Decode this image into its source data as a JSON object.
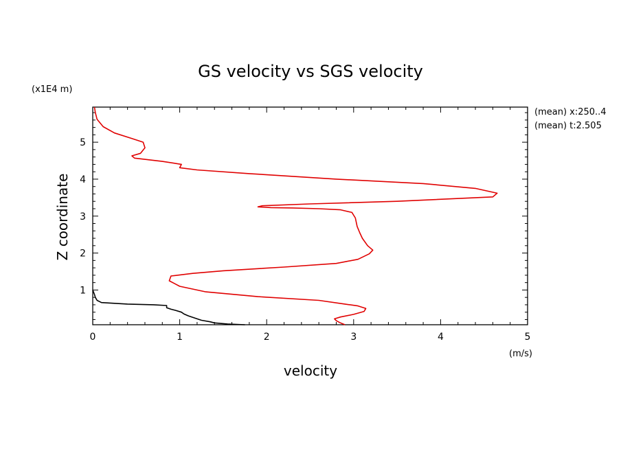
{
  "chart_data": {
    "type": "line",
    "title": "GS velocity vs SGS velocity",
    "xlabel": "velocity",
    "x_unit": "(m/s)",
    "ylabel": "Z coordinate",
    "y_unit": "(x1E4 m)",
    "xlim": [
      0,
      5
    ],
    "ylim": [
      0.06,
      5.95
    ],
    "x_ticks": [
      0,
      1,
      2,
      3,
      4,
      5
    ],
    "y_ticks": [
      1,
      2,
      3,
      4,
      5
    ],
    "annotations": [
      "(mean) x:250..4",
      "(mean) t:2.505"
    ],
    "series": [
      {
        "color": "#e00000",
        "points": [
          [
            2.9,
            0.06
          ],
          [
            2.84,
            0.12
          ],
          [
            2.8,
            0.17
          ],
          [
            2.78,
            0.22
          ],
          [
            2.85,
            0.27
          ],
          [
            3.0,
            0.34
          ],
          [
            3.12,
            0.42
          ],
          [
            3.14,
            0.5
          ],
          [
            3.05,
            0.57
          ],
          [
            2.9,
            0.62
          ],
          [
            2.6,
            0.72
          ],
          [
            1.9,
            0.82
          ],
          [
            1.3,
            0.95
          ],
          [
            1.0,
            1.1
          ],
          [
            0.88,
            1.25
          ],
          [
            0.9,
            1.38
          ],
          [
            1.15,
            1.45
          ],
          [
            1.5,
            1.52
          ],
          [
            2.2,
            1.62
          ],
          [
            2.8,
            1.72
          ],
          [
            3.05,
            1.83
          ],
          [
            3.18,
            1.98
          ],
          [
            3.22,
            2.08
          ],
          [
            3.16,
            2.2
          ],
          [
            3.1,
            2.4
          ],
          [
            3.07,
            2.55
          ],
          [
            3.04,
            2.72
          ],
          [
            3.02,
            2.95
          ],
          [
            2.98,
            3.1
          ],
          [
            2.85,
            3.17
          ],
          [
            2.6,
            3.2
          ],
          [
            2.3,
            3.22
          ],
          [
            2.05,
            3.23
          ],
          [
            1.9,
            3.25
          ],
          [
            1.95,
            3.28
          ],
          [
            2.5,
            3.33
          ],
          [
            3.5,
            3.4
          ],
          [
            4.6,
            3.52
          ],
          [
            4.65,
            3.62
          ],
          [
            4.4,
            3.75
          ],
          [
            3.8,
            3.88
          ],
          [
            2.8,
            4.0
          ],
          [
            1.8,
            4.15
          ],
          [
            1.2,
            4.25
          ],
          [
            1.0,
            4.31
          ],
          [
            1.02,
            4.4
          ],
          [
            0.8,
            4.48
          ],
          [
            0.48,
            4.57
          ],
          [
            0.45,
            4.63
          ],
          [
            0.55,
            4.7
          ],
          [
            0.6,
            4.85
          ],
          [
            0.58,
            5.0
          ],
          [
            0.45,
            5.1
          ],
          [
            0.25,
            5.25
          ],
          [
            0.12,
            5.42
          ],
          [
            0.05,
            5.62
          ],
          [
            0.03,
            5.8
          ],
          [
            0.02,
            5.95
          ]
        ]
      },
      {
        "color": "#000000",
        "points": [
          [
            1.75,
            0.06
          ],
          [
            1.55,
            0.08
          ],
          [
            1.4,
            0.11
          ],
          [
            1.35,
            0.14
          ],
          [
            1.25,
            0.18
          ],
          [
            1.2,
            0.22
          ],
          [
            1.15,
            0.26
          ],
          [
            1.1,
            0.3
          ],
          [
            1.05,
            0.35
          ],
          [
            1.02,
            0.4
          ],
          [
            0.95,
            0.45
          ],
          [
            0.9,
            0.48
          ],
          [
            0.85,
            0.52
          ],
          [
            0.85,
            0.58
          ],
          [
            0.7,
            0.6
          ],
          [
            0.4,
            0.62
          ],
          [
            0.1,
            0.66
          ],
          [
            0.05,
            0.72
          ],
          [
            0.03,
            0.8
          ],
          [
            0.02,
            0.88
          ],
          [
            0.0,
            1.0
          ]
        ]
      }
    ]
  }
}
